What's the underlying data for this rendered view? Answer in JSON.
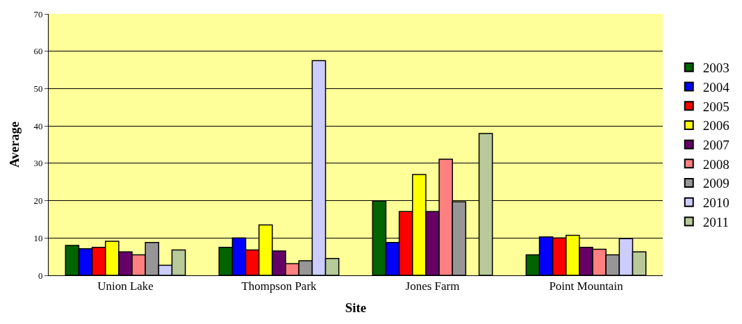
{
  "chart_data": {
    "type": "bar",
    "xlabel": "Site",
    "ylabel": "Average",
    "categories": [
      "Union Lake",
      "Thompson Park",
      "Jones Farm",
      "Point Mountain"
    ],
    "series": [
      {
        "name": "2003",
        "color": "#006400",
        "values": [
          8.0,
          7.5,
          19.9,
          5.5
        ]
      },
      {
        "name": "2004",
        "color": "#0000ff",
        "values": [
          7.1,
          10.0,
          8.8,
          10.3
        ]
      },
      {
        "name": "2005",
        "color": "#ff0000",
        "values": [
          7.5,
          6.8,
          17.1,
          10.0
        ]
      },
      {
        "name": "2006",
        "color": "#ffff00",
        "values": [
          9.1,
          13.5,
          27.0,
          10.7
        ]
      },
      {
        "name": "2007",
        "color": "#660066",
        "values": [
          6.3,
          6.5,
          17.1,
          7.5
        ]
      },
      {
        "name": "2008",
        "color": "#ff8080",
        "values": [
          5.5,
          3.1,
          31.1,
          7.0
        ]
      },
      {
        "name": "2009",
        "color": "#969696",
        "values": [
          8.8,
          3.9,
          19.7,
          5.5
        ]
      },
      {
        "name": "2010",
        "color": "#ccccff",
        "values": [
          2.7,
          57.5,
          null,
          9.8
        ]
      },
      {
        "name": "2011",
        "color": "#b8c99a",
        "values": [
          6.8,
          4.5,
          38.0,
          6.3
        ]
      }
    ],
    "ylim": [
      0,
      70
    ],
    "yticks": [
      0,
      10,
      20,
      30,
      40,
      50,
      60,
      70
    ],
    "grid": "y",
    "legend": "right"
  }
}
